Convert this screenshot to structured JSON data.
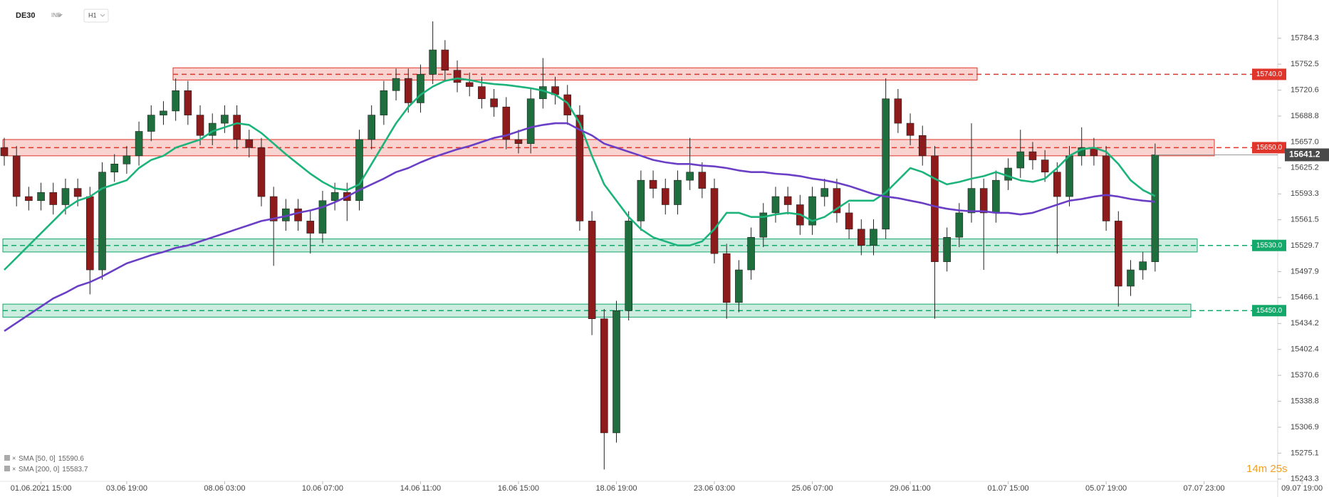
{
  "header": {
    "symbol": "DE30",
    "market": "IND",
    "timeframe": "H1"
  },
  "timer": "14m 25s",
  "chart_data": {
    "type": "candlestick",
    "up_color": "#1f6e3d",
    "down_color": "#8e1b1b",
    "categories": [
      null,
      null,
      null,
      "01.06.2021 15:00",
      null,
      null,
      null,
      null,
      null,
      null,
      "03.06 19:00",
      null,
      null,
      null,
      null,
      null,
      null,
      null,
      "08.06 03:00",
      null,
      null,
      null,
      null,
      null,
      null,
      null,
      "10.06 07:00",
      null,
      null,
      null,
      null,
      null,
      null,
      null,
      "14.06 11:00",
      null,
      null,
      null,
      null,
      null,
      null,
      null,
      "16.06 15:00",
      null,
      null,
      null,
      null,
      null,
      null,
      null,
      "18.06 19:00",
      null,
      null,
      null,
      null,
      null,
      null,
      null,
      "23.06 03:00",
      null,
      null,
      null,
      null,
      null,
      null,
      null,
      "25.06 07:00",
      null,
      null,
      null,
      null,
      null,
      null,
      null,
      "29.06 11:00",
      null,
      null,
      null,
      null,
      null,
      null,
      null,
      "01.07 15:00",
      null,
      null,
      null,
      null,
      null,
      null,
      null,
      "05.07 19:00",
      null,
      null,
      null,
      null,
      null,
      null,
      null,
      "07.07 23:00",
      null,
      null,
      null,
      null,
      null,
      null,
      null,
      "09.07 19:00"
    ],
    "open": [
      15650,
      15640,
      15590,
      15585,
      15595,
      15580,
      15600,
      15590,
      15500,
      15620,
      15630,
      15640,
      15670,
      15690,
      15695,
      15720,
      15690,
      15665,
      15680,
      15690,
      15660,
      15650,
      15590,
      15560,
      15575,
      15560,
      15545,
      15585,
      15595,
      15585,
      15660,
      15690,
      15720,
      15735,
      15705,
      15740,
      15770,
      15745,
      15730,
      15725,
      15710,
      15700,
      15660,
      15655,
      15710,
      15725,
      15715,
      15690,
      15560,
      15440,
      15300,
      15450,
      15560,
      15610,
      15600,
      15580,
      15610,
      15620,
      15600,
      15520,
      15460,
      15500,
      15540,
      15570,
      15590,
      15580,
      15555,
      15590,
      15600,
      15570,
      15550,
      15530,
      15550,
      15710,
      15680,
      15665,
      15640,
      15510,
      15540,
      15570,
      15600,
      15570,
      15610,
      15625,
      15645,
      15635,
      15620,
      15590,
      15640,
      15650,
      15640,
      15560,
      15480,
      15500,
      15510,
      null,
      null,
      null,
      null,
      null,
      null,
      null,
      null,
      null,
      null,
      null,
      null
    ],
    "high": [
      15662,
      15652,
      15602,
      15607,
      15607,
      15612,
      15612,
      15602,
      15632,
      15642,
      15652,
      15682,
      15702,
      15707,
      15735,
      15732,
      15702,
      15692,
      15702,
      15702,
      15672,
      15662,
      15602,
      15587,
      15587,
      15572,
      15597,
      15607,
      15607,
      15672,
      15702,
      15732,
      15747,
      15747,
      15752,
      15805,
      15782,
      15757,
      15742,
      15737,
      15722,
      15712,
      15672,
      15722,
      15760,
      15737,
      15727,
      15702,
      15572,
      15452,
      15462,
      15572,
      15622,
      15622,
      15612,
      15622,
      15662,
      15632,
      15612,
      15532,
      15512,
      15552,
      15582,
      15602,
      15602,
      15592,
      15602,
      15612,
      15612,
      15582,
      15562,
      15562,
      15735,
      15722,
      15692,
      15677,
      15652,
      15552,
      15582,
      15680,
      15612,
      15622,
      15637,
      15672,
      15657,
      15647,
      15632,
      15652,
      15675,
      15662,
      15652,
      15572,
      15512,
      15522,
      15655,
      null,
      null,
      null,
      null,
      null,
      null,
      null,
      null,
      null,
      null,
      null,
      null
    ],
    "low": [
      15628,
      15578,
      15573,
      15573,
      15568,
      15568,
      15578,
      15470,
      15488,
      15608,
      15618,
      15628,
      15658,
      15678,
      15683,
      15678,
      15653,
      15653,
      15668,
      15648,
      15638,
      15578,
      15505,
      15548,
      15548,
      15520,
      15533,
      15573,
      15560,
      15573,
      15648,
      15678,
      15708,
      15693,
      15693,
      15728,
      15733,
      15718,
      15713,
      15698,
      15688,
      15648,
      15643,
      15643,
      15698,
      15703,
      15678,
      15548,
      15420,
      15255,
      15288,
      15438,
      15548,
      15588,
      15568,
      15568,
      15598,
      15588,
      15508,
      15440,
      15448,
      15488,
      15528,
      15558,
      15568,
      15543,
      15543,
      15578,
      15558,
      15538,
      15518,
      15518,
      15538,
      15668,
      15653,
      15628,
      15440,
      15498,
      15528,
      15558,
      15500,
      15558,
      15598,
      15613,
      15623,
      15608,
      15520,
      15578,
      15628,
      15628,
      15548,
      15455,
      15468,
      15488,
      15498,
      null,
      null,
      null,
      null,
      null,
      null,
      null,
      null,
      null,
      null,
      null,
      null
    ],
    "close": [
      15640,
      15590,
      15585,
      15595,
      15580,
      15600,
      15590,
      15500,
      15620,
      15630,
      15640,
      15670,
      15690,
      15695,
      15720,
      15690,
      15665,
      15680,
      15690,
      15660,
      15650,
      15590,
      15560,
      15575,
      15560,
      15545,
      15585,
      15595,
      15585,
      15660,
      15690,
      15720,
      15735,
      15705,
      15740,
      15770,
      15745,
      15730,
      15725,
      15710,
      15700,
      15660,
      15655,
      15710,
      15725,
      15715,
      15690,
      15560,
      15440,
      15300,
      15450,
      15560,
      15610,
      15600,
      15580,
      15610,
      15620,
      15600,
      15520,
      15460,
      15500,
      15540,
      15570,
      15590,
      15580,
      15555,
      15590,
      15600,
      15570,
      15550,
      15530,
      15550,
      15710,
      15680,
      15665,
      15640,
      15510,
      15540,
      15570,
      15600,
      15570,
      15610,
      15625,
      15645,
      15635,
      15620,
      15590,
      15640,
      15650,
      15640,
      15560,
      15480,
      15500,
      15510,
      15641.2,
      null,
      null,
      null,
      null,
      null,
      null,
      null,
      null,
      null,
      null,
      null,
      null
    ],
    "series": [
      {
        "name": "SMA [50, 0]",
        "color": "#1db47c",
        "values": [
          15500,
          15515,
          15530,
          15545,
          15560,
          15575,
          15585,
          15590,
          15600,
          15605,
          15610,
          15625,
          15635,
          15640,
          15650,
          15655,
          15660,
          15670,
          15675,
          15680,
          15678,
          15668,
          15655,
          15642,
          15630,
          15618,
          15608,
          15600,
          15598,
          15605,
          15630,
          15655,
          15680,
          15700,
          15715,
          15725,
          15732,
          15735,
          15733,
          15730,
          15728,
          15727,
          15725,
          15723,
          15720,
          15715,
          15705,
          15680,
          15640,
          15605,
          15585,
          15565,
          15550,
          15540,
          15535,
          15530,
          15530,
          15535,
          15550,
          15570,
          15570,
          15565,
          15565,
          15568,
          15570,
          15568,
          15560,
          15565,
          15575,
          15585,
          15585,
          15585,
          15595,
          15610,
          15625,
          15620,
          15612,
          15605,
          15608,
          15612,
          15615,
          15620,
          15615,
          15610,
          15608,
          15612,
          15625,
          15640,
          15648,
          15650,
          15645,
          15630,
          15610,
          15598,
          15590.6,
          null,
          null,
          null,
          null,
          null,
          null,
          null,
          null,
          null,
          null,
          null,
          null
        ]
      },
      {
        "name": "SMA [200, 0]",
        "color": "#6a3fc6",
        "values": [
          15425,
          15435,
          15445,
          15455,
          15465,
          15472,
          15480,
          15485,
          15492,
          15500,
          15508,
          15513,
          15518,
          15522,
          15527,
          15530,
          15535,
          15540,
          15545,
          15550,
          15555,
          15560,
          15563,
          15566,
          15570,
          15573,
          15577,
          15583,
          15590,
          15598,
          15605,
          15612,
          15620,
          15625,
          15632,
          15638,
          15643,
          15648,
          15652,
          15657,
          15662,
          15665,
          15670,
          15675,
          15678,
          15680,
          15680,
          15672,
          15665,
          15655,
          15650,
          15645,
          15640,
          15635,
          15632,
          15630,
          15630,
          15628,
          15627,
          15625,
          15622,
          15620,
          15620,
          15618,
          15617,
          15615,
          15612,
          15610,
          15607,
          15603,
          15598,
          15593,
          15590,
          15588,
          15585,
          15582,
          15578,
          15575,
          15573,
          15572,
          15572,
          15570,
          15570,
          15568,
          15570,
          15575,
          15580,
          15585,
          15587,
          15590,
          15592,
          15590,
          15587,
          15585,
          15583.7,
          null,
          null,
          null,
          null,
          null,
          null,
          null,
          null,
          null,
          null,
          null,
          null
        ]
      }
    ],
    "levels": [
      {
        "value": 15740,
        "label": "15740.0",
        "color": "#e0352b",
        "band": [
          15733,
          15748
        ]
      },
      {
        "value": 15650,
        "label": "15650.0",
        "color": "#e0352b",
        "band": [
          15640,
          15660
        ]
      },
      {
        "value": 15530,
        "label": "15530.0",
        "color": "#14a86b",
        "band": [
          15522,
          15538
        ]
      },
      {
        "value": 15450,
        "label": "15450.0",
        "color": "#14a86b",
        "band": [
          15442,
          15458
        ]
      }
    ],
    "ylim": [
      15237,
      15826
    ],
    "yticks": [
      15784.3,
      15752.5,
      15720.6,
      15688.8,
      {
        "value": 15657,
        "label": "15657.0"
      },
      15625.2,
      15593.3,
      15561.5,
      15529.7,
      15497.9,
      15466.1,
      15434.2,
      15402.4,
      15370.6,
      15338.8,
      15306.9,
      15275.1,
      15243.3
    ]
  }
}
